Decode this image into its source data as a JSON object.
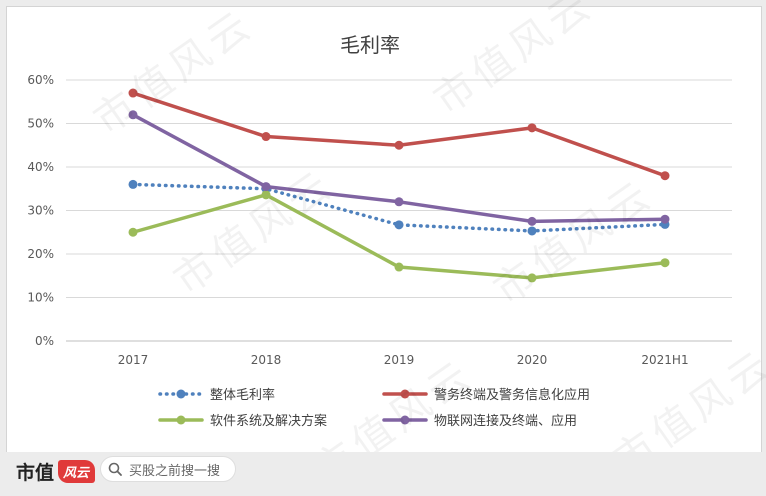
{
  "chart_data": {
    "type": "line",
    "title": "毛利率",
    "categories": [
      "2017",
      "2018",
      "2019",
      "2020",
      "2021H1"
    ],
    "ylim": [
      0,
      60
    ],
    "yticks": [
      "0%",
      "10%",
      "20%",
      "30%",
      "40%",
      "50%",
      "60%"
    ],
    "ytick_values": [
      0,
      10,
      20,
      30,
      40,
      50,
      60
    ],
    "grid": true,
    "legend_position": "bottom",
    "series": [
      {
        "name": "整体毛利率",
        "values": [
          36,
          35,
          26.7,
          25.3,
          26.8
        ],
        "color": "#4f81bd",
        "style": "dotted"
      },
      {
        "name": "警务终端及警务信息化应用",
        "values": [
          57,
          47,
          45,
          49,
          38
        ],
        "color": "#c0504d",
        "style": "solid"
      },
      {
        "name": "软件系统及解决方案",
        "values": [
          25,
          33.6,
          17,
          14.5,
          18
        ],
        "color": "#9bbb59",
        "style": "solid"
      },
      {
        "name": "物联网连接及终端、应用",
        "values": [
          52,
          35.5,
          32,
          27.5,
          28
        ],
        "color": "#8064a2",
        "style": "solid"
      }
    ]
  },
  "footer": {
    "brand_name": "市值",
    "brand_badge": "风云",
    "search_placeholder": "买股之前搜一搜"
  },
  "watermark_text": "市值风云"
}
